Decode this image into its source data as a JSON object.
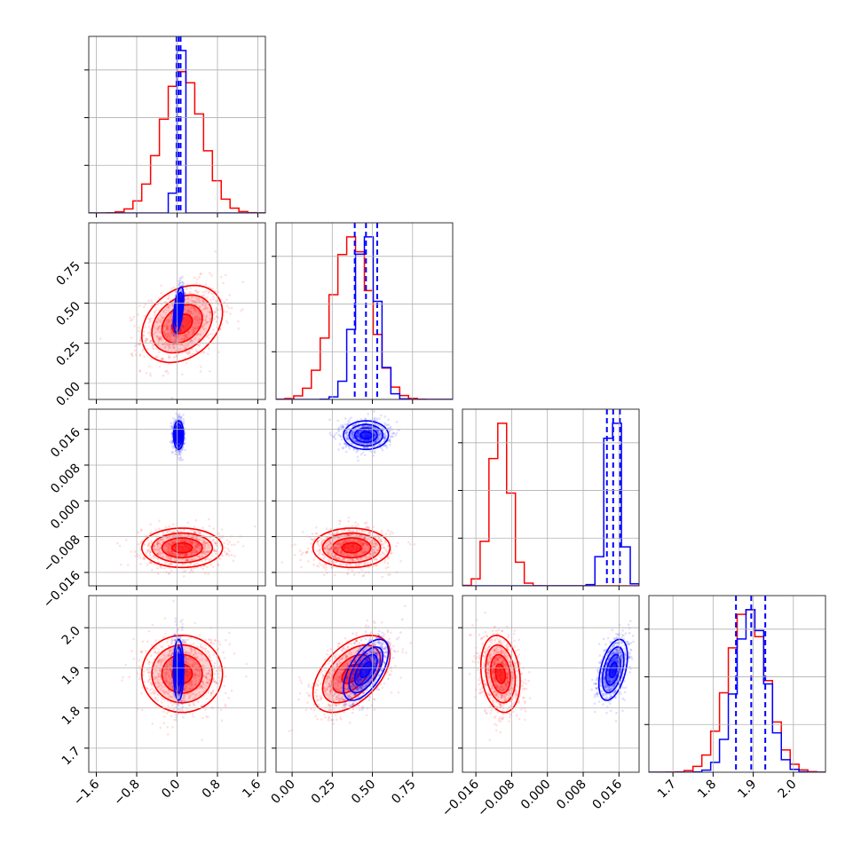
{
  "chart_data": {
    "type": "corner",
    "title": "",
    "colors": {
      "red": "#ff0000",
      "blue": "#0000ff",
      "grid": "#b0b0b0",
      "frame": "#333333"
    },
    "grid": true,
    "parameters": [
      {
        "range": [
          -1.75,
          1.75
        ],
        "ticks": [
          -1.6,
          -0.8,
          0.0,
          0.8,
          1.6
        ],
        "tick_labels": [
          "−1.6",
          "−0.8",
          "0.0",
          "0.8",
          "1.6"
        ]
      },
      {
        "range": [
          -0.1,
          1.0
        ],
        "ticks": [
          0.0,
          0.25,
          0.5,
          0.75
        ],
        "tick_labels": [
          "0.00",
          "0.25",
          "0.50",
          "0.75"
        ]
      },
      {
        "range": [
          -0.019,
          0.0205
        ],
        "ticks": [
          -0.016,
          -0.008,
          0.0,
          0.008,
          0.016
        ],
        "tick_labels": [
          "−0.016",
          "−0.008",
          "0.000",
          "0.008",
          "0.016"
        ]
      },
      {
        "range": [
          1.64,
          2.08
        ],
        "ticks": [
          1.7,
          1.8,
          1.9,
          2.0
        ],
        "tick_labels": [
          "1.7",
          "1.8",
          "1.9",
          "2.0"
        ]
      }
    ],
    "series": [
      {
        "color": "red",
        "mean": [
          0.1,
          0.37,
          -0.0105,
          1.885
        ],
        "sd": [
          0.4,
          0.12,
          0.0022,
          0.048
        ],
        "corr": [
          [
            1,
            0.3,
            0,
            0
          ],
          [
            0.3,
            1,
            0,
            0.5
          ],
          [
            0,
            0,
            1,
            -0.2
          ],
          [
            0,
            0.5,
            -0.2,
            1
          ]
        ]
      },
      {
        "color": "blue",
        "mean": [
          0.03,
          0.46,
          0.0147,
          1.895
        ],
        "sd": [
          0.05,
          0.07,
          0.0016,
          0.038
        ],
        "corr": [
          [
            1,
            0.5,
            0,
            0
          ],
          [
            0.5,
            1,
            0,
            0.6
          ],
          [
            0,
            0,
            1,
            0.45
          ],
          [
            0,
            0.6,
            0.45,
            1
          ]
        ]
      }
    ],
    "quantile_lines": [
      {
        "parameter": 0,
        "color": "blue",
        "values": [
          -0.01,
          0.03,
          0.07
        ]
      },
      {
        "parameter": 1,
        "color": "blue",
        "values": [
          0.39,
          0.46,
          0.53
        ]
      },
      {
        "parameter": 2,
        "color": "blue",
        "values": [
          0.0133,
          0.0147,
          0.0162
        ]
      },
      {
        "parameter": 3,
        "color": "blue",
        "values": [
          1.857,
          1.895,
          1.93
        ]
      }
    ],
    "contour_levels_sigma": [
      0.5,
      1.0,
      1.5,
      2.0
    ]
  }
}
